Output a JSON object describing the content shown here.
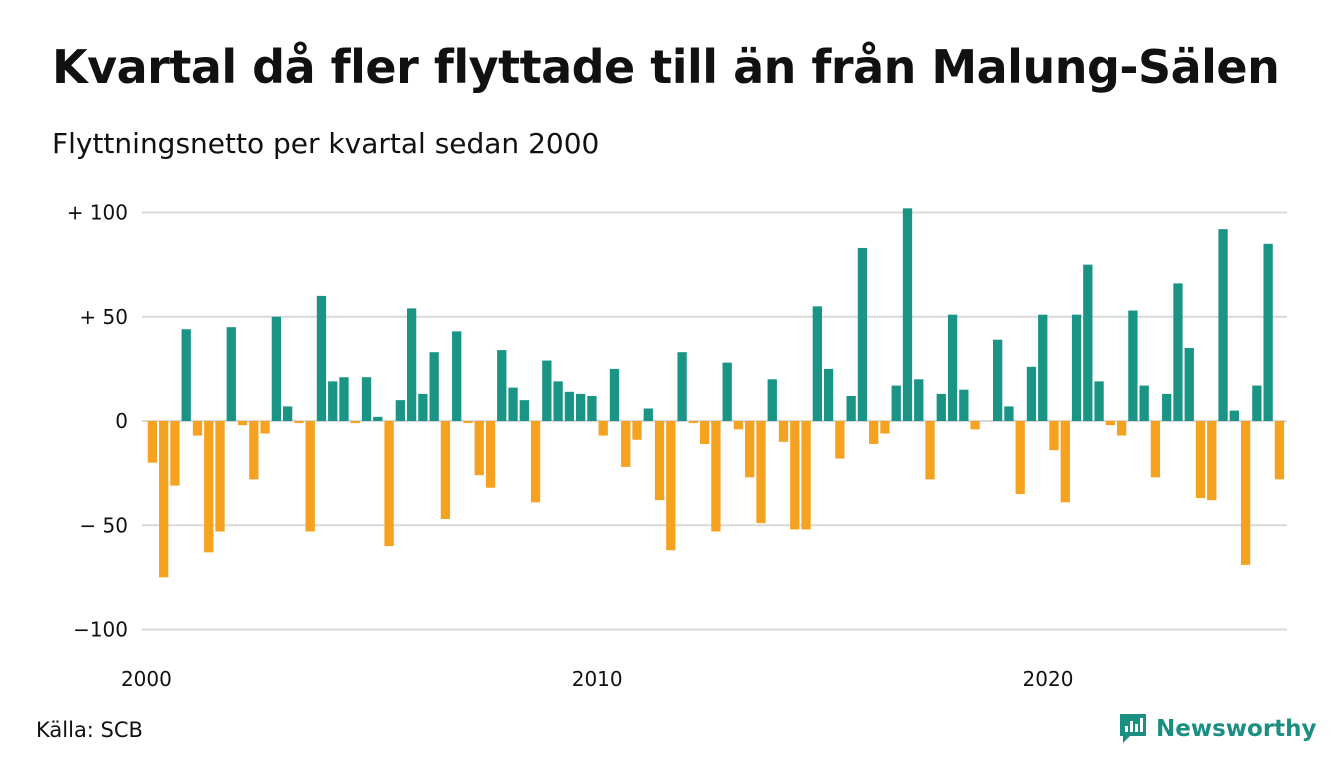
{
  "title": "Kvartal då fler flyttade till än från Malung-Sälen",
  "subtitle": "Flyttningsnetto per kvartal sedan 2000",
  "source": "Källa: SCB",
  "brand": "Newsworthy",
  "colors": {
    "positive": "#1a9485",
    "negative": "#f5a221",
    "grid": "#d9d9d9",
    "brand": "#1a8f82"
  },
  "chart_data": {
    "type": "bar",
    "x_start": "2000 Q1",
    "x_ticks": [
      {
        "label": "2000",
        "index": 0
      },
      {
        "label": "2010",
        "index": 40
      },
      {
        "label": "2020",
        "index": 80
      }
    ],
    "y_ticks": [
      {
        "label": "+ 100",
        "value": 100
      },
      {
        "label": "+  50",
        "value": 50
      },
      {
        "label": "0",
        "value": 0
      },
      {
        "label": "− 50",
        "value": -50
      },
      {
        "label": "−100",
        "value": -100
      }
    ],
    "ylim": [
      -105,
      105
    ],
    "grid": true,
    "values": [
      -20,
      -75,
      -31,
      44,
      -7,
      -63,
      -53,
      45,
      -2,
      -28,
      -6,
      50,
      7,
      -1,
      -53,
      60,
      19,
      21,
      -1,
      21,
      2,
      -60,
      10,
      54,
      13,
      33,
      -47,
      43,
      -1,
      -26,
      -32,
      34,
      16,
      10,
      -39,
      29,
      19,
      14,
      13,
      12,
      -7,
      25,
      -22,
      -9,
      6,
      -38,
      -62,
      33,
      -1,
      -11,
      -53,
      28,
      -4,
      -27,
      -49,
      20,
      -10,
      -52,
      -52,
      55,
      25,
      -18,
      12,
      83,
      -11,
      -6,
      17,
      102,
      20,
      -28,
      13,
      51,
      15,
      -4,
      0,
      39,
      7,
      -35,
      26,
      51,
      -14,
      -39,
      51,
      75,
      19,
      -2,
      -7,
      53,
      17,
      -27,
      13,
      66,
      35,
      -37,
      -38,
      92,
      5,
      -69,
      17,
      85,
      -28
    ]
  }
}
